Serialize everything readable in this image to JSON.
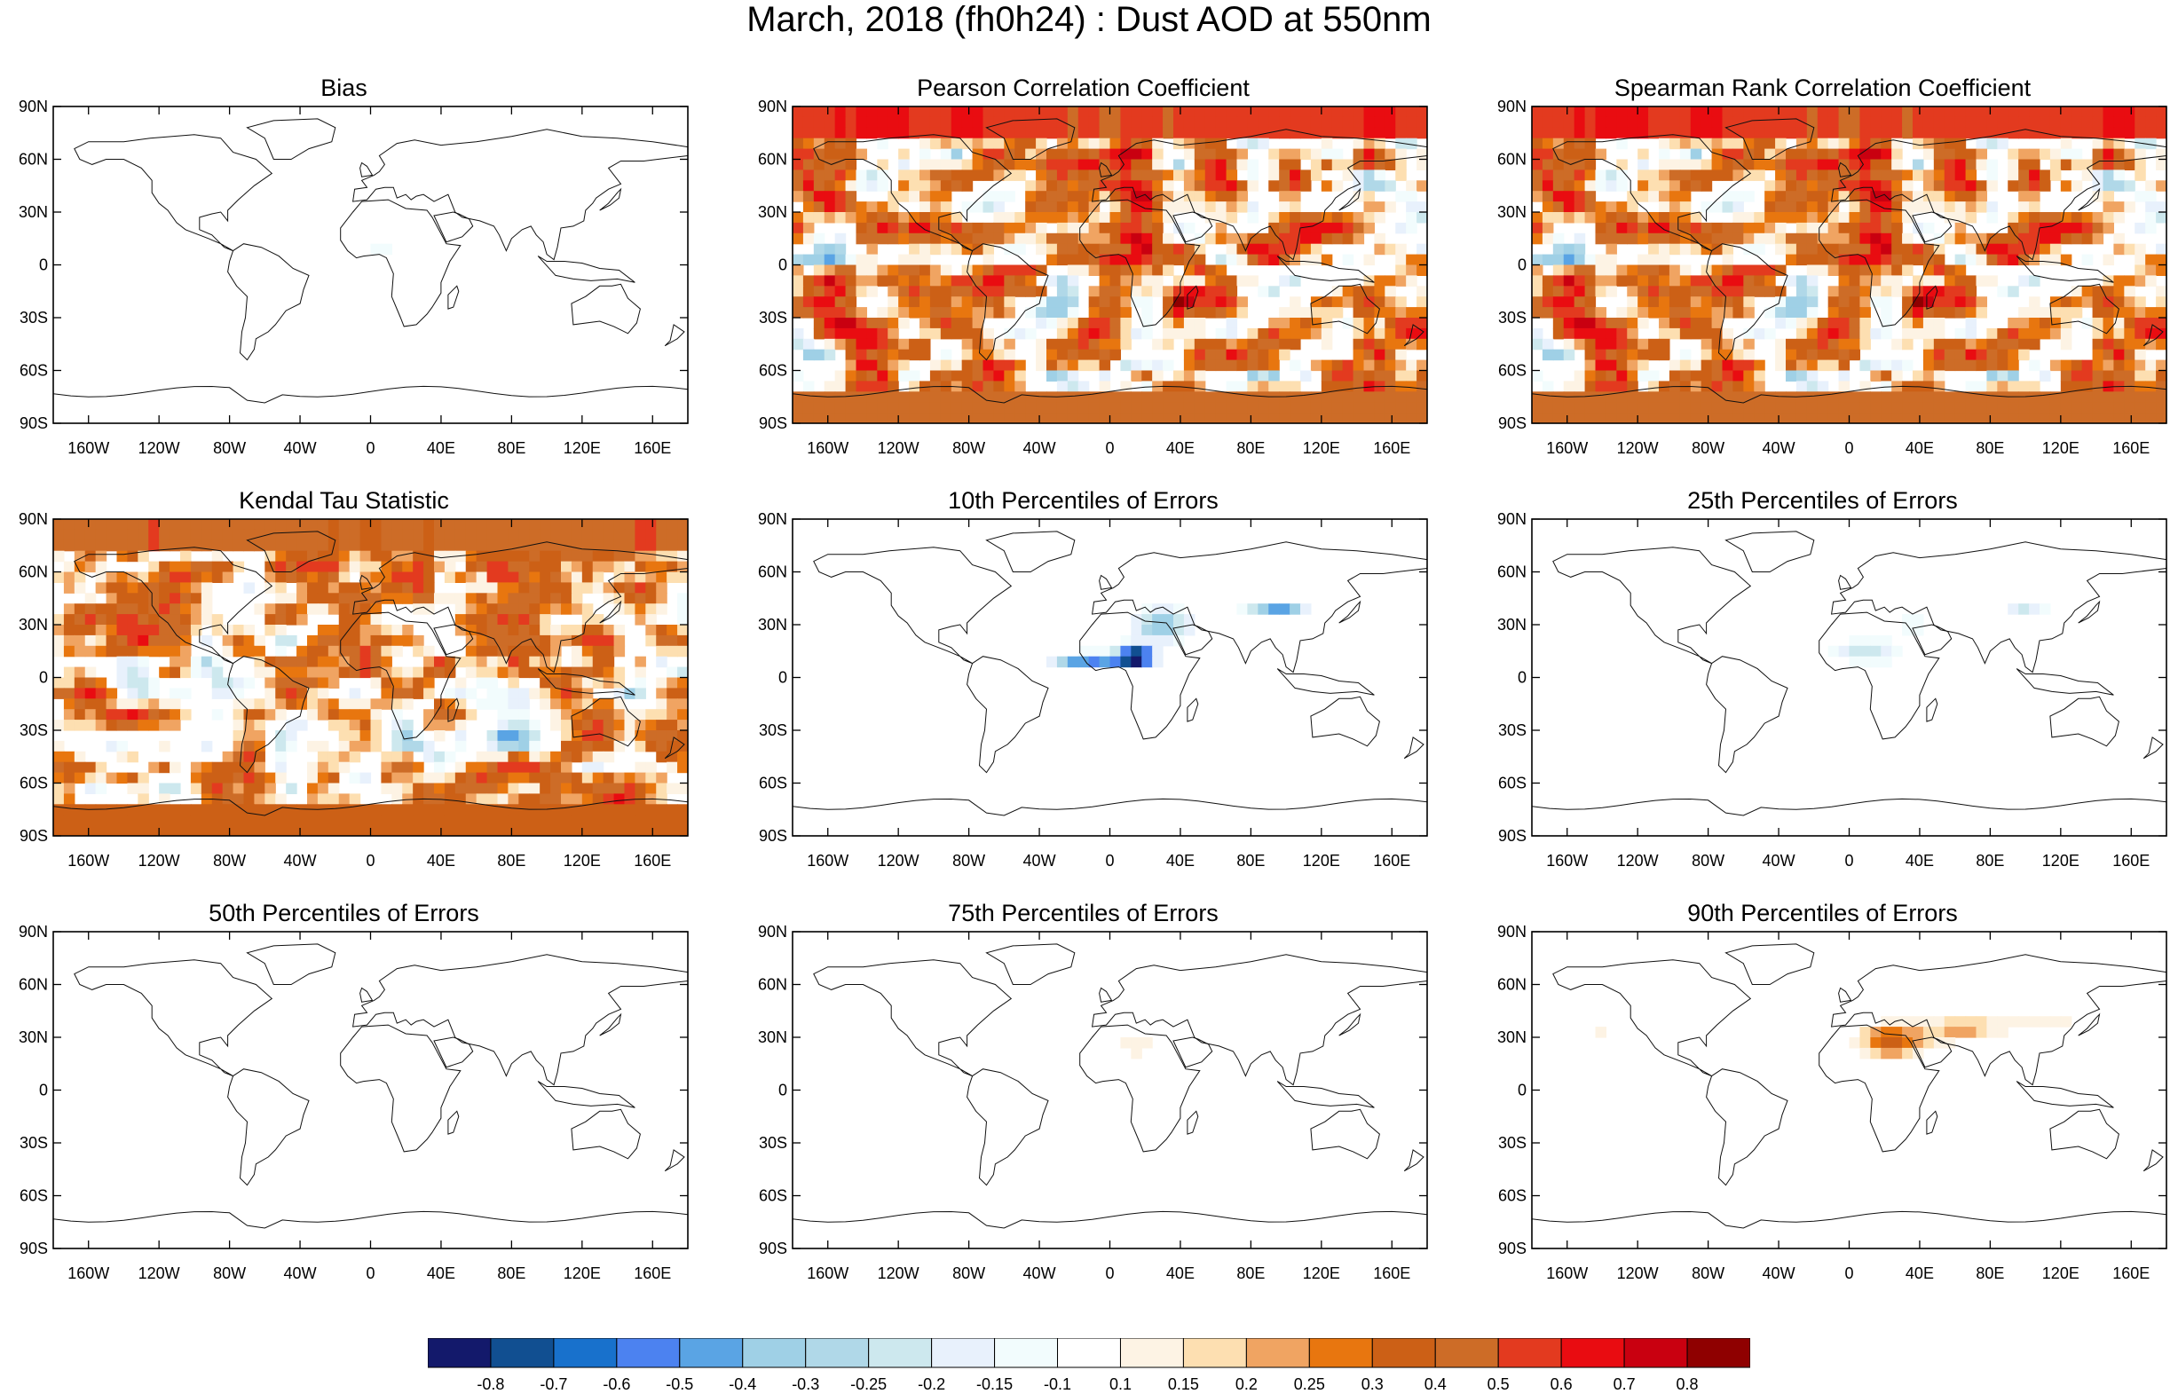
{
  "title": "March, 2018 (fh0h24) : Dust AOD at 550nm",
  "axes": {
    "lat_labels": [
      "90N",
      "60N",
      "30N",
      "0",
      "30S",
      "60S",
      "90S"
    ],
    "lon_labels": [
      "160W",
      "120W",
      "80W",
      "40W",
      "0",
      "40E",
      "80E",
      "120E",
      "160E"
    ]
  },
  "panels": [
    {
      "title": "Bias",
      "pattern": "bias"
    },
    {
      "title": "Pearson Correlation Coefficient",
      "pattern": "corr-strong"
    },
    {
      "title": "Spearman Rank Correlation Coefficient",
      "pattern": "corr-strong"
    },
    {
      "title": "Kendal Tau Statistic",
      "pattern": "corr-medium"
    },
    {
      "title": "10th Percentiles of Errors",
      "pattern": "p10"
    },
    {
      "title": "25th Percentiles of Errors",
      "pattern": "p25"
    },
    {
      "title": "50th Percentiles of Errors",
      "pattern": "p50"
    },
    {
      "title": "75th Percentiles of Errors",
      "pattern": "p75"
    },
    {
      "title": "90th Percentiles of Errors",
      "pattern": "p90"
    }
  ],
  "colorbar": {
    "labels": [
      "-0.8",
      "-0.7",
      "-0.6",
      "-0.5",
      "-0.4",
      "-0.3",
      "-0.25",
      "-0.2",
      "-0.15",
      "-0.1",
      "0.1",
      "0.15",
      "0.2",
      "0.25",
      "0.3",
      "0.4",
      "0.5",
      "0.6",
      "0.7",
      "0.8"
    ],
    "colors": [
      "#13196b",
      "#114f91",
      "#1871cc",
      "#4c82f0",
      "#5aa4e4",
      "#9fd0e6",
      "#b0d8e8",
      "#cde8ee",
      "#e8f1fc",
      "#f2fcfd",
      "#ffffff",
      "#fdf3e4",
      "#fddfb1",
      "#f0a462",
      "#e8760f",
      "#cc6016",
      "#cd6c27",
      "#e33a1f",
      "#e90c11",
      "#c90010",
      "#8f0000"
    ]
  }
}
